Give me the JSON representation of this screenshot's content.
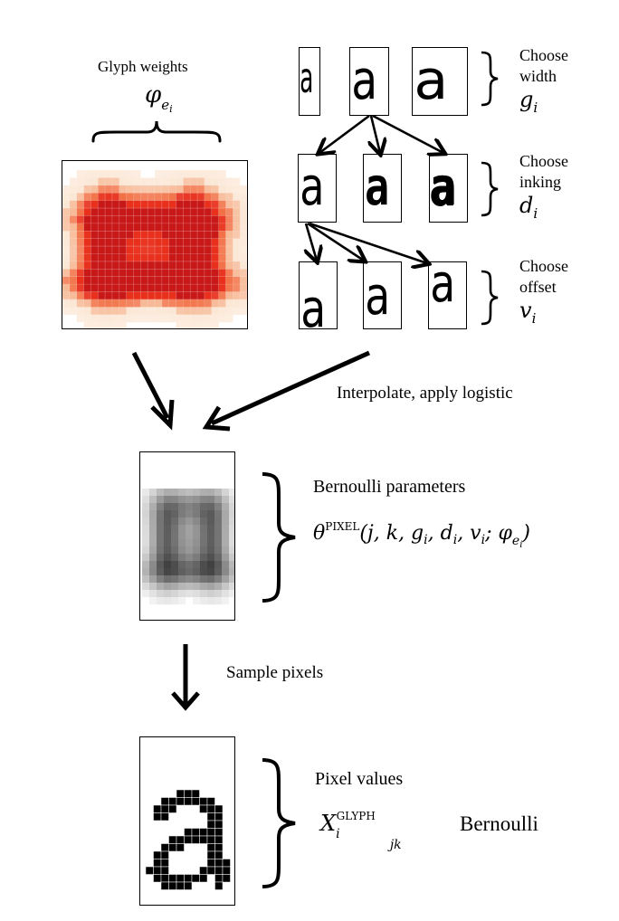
{
  "glyph_weights": {
    "label": "Glyph weights",
    "symbol": "φ",
    "sub": "e",
    "subsub": "i"
  },
  "glyph_sample": "a",
  "rows": [
    {
      "choose": "Choose",
      "what": "width",
      "var": "g",
      "sub": "i"
    },
    {
      "choose": "Choose",
      "what": "inking",
      "var": "d",
      "sub": "i"
    },
    {
      "choose": "Choose",
      "what": "offset",
      "var": "v",
      "sub": "i"
    }
  ],
  "interpolate_label": "Interpolate, apply logistic",
  "bernoulli_params": {
    "title": "Bernoulli parameters",
    "theta": "θ",
    "sup": "PIXEL",
    "args_pre": "(j, k, g",
    "args_mid1": ", d",
    "args_mid2": ", v",
    "args_mid3": "; φ",
    "args_sub_e": "e",
    "args_sub_i": "i",
    "close": ")"
  },
  "sample_label": "Sample pixels",
  "pixel_values": {
    "title": "Pixel values",
    "var": "X",
    "sub": "i",
    "sup": "GLYPH",
    "subscript_jk": "jk",
    "dist": "Bernoulli"
  },
  "colors": {
    "heat_high": "#d62020",
    "heat_mid": "#f06030",
    "heat_low": "#f8c8a0",
    "gray": "#808080",
    "ink": "#000000"
  }
}
